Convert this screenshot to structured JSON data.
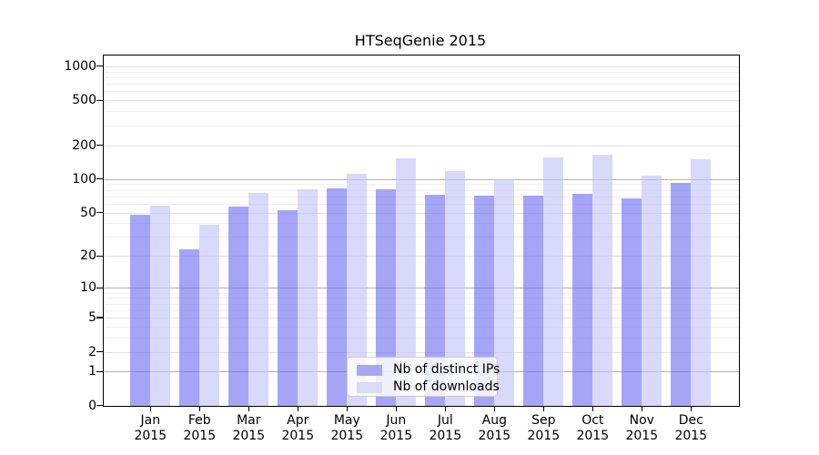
{
  "chart_data": {
    "type": "bar",
    "title": "HTSeqGenie 2015",
    "categories": [
      "Jan",
      "Feb",
      "Mar",
      "Apr",
      "May",
      "Jun",
      "Jul",
      "Aug",
      "Sep",
      "Oct",
      "Nov",
      "Dec"
    ],
    "year_label": "2015",
    "series": [
      {
        "name": "Nb of distinct IPs",
        "color": "rgba(110,110,243,0.62)",
        "color_solid": "#a9a9f1",
        "values": [
          48,
          23,
          57,
          53,
          83,
          81,
          73,
          71,
          71,
          74,
          67,
          92
        ]
      },
      {
        "name": "Nb of downloads",
        "color": "rgba(193,193,250,0.62)",
        "color_solid": "#dadaf9",
        "values": [
          58,
          39,
          75,
          81,
          111,
          153,
          117,
          100,
          155,
          166,
          107,
          149
        ]
      }
    ],
    "yscale": "log10(1+v)",
    "yticks": [
      0,
      1,
      2,
      5,
      10,
      20,
      50,
      100,
      200,
      500,
      1000
    ],
    "minor_gridlines": [
      3,
      4,
      6,
      7,
      8,
      9,
      30,
      40,
      60,
      70,
      80,
      90,
      300,
      400,
      600,
      700,
      800,
      900
    ],
    "ylim": [
      0,
      1245
    ],
    "xlabel": "",
    "ylabel": "",
    "grid": true,
    "legend_position": "lower-center-inside",
    "axis_color": "#000000",
    "gridline_decade_color": "#b4b4b4",
    "gridline_major_color": "#e2e2e2",
    "gridline_minor_color": "#f0f0f0"
  }
}
